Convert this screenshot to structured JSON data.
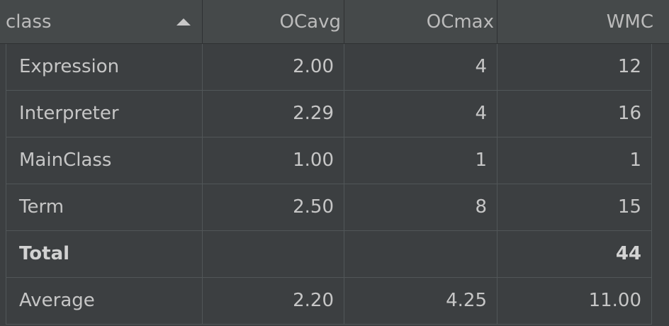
{
  "table": {
    "columns": [
      "class",
      "OCavg",
      "OCmax",
      "WMC"
    ],
    "sorted_column": "class",
    "sort_direction": "ascending",
    "rows": [
      {
        "class": "Expression",
        "ocavg": "2.00",
        "ocmax": "4",
        "wmc": "12"
      },
      {
        "class": "Interpreter",
        "ocavg": "2.29",
        "ocmax": "4",
        "wmc": "16"
      },
      {
        "class": "MainClass",
        "ocavg": "1.00",
        "ocmax": "1",
        "wmc": "1"
      },
      {
        "class": "Term",
        "ocavg": "2.50",
        "ocmax": "8",
        "wmc": "15"
      },
      {
        "class": "Total",
        "ocavg": "",
        "ocmax": "",
        "wmc": "44"
      },
      {
        "class": "Average",
        "ocavg": "2.20",
        "ocmax": "4.25",
        "wmc": "11.00"
      }
    ]
  },
  "colors": {
    "background": "#3c3f41",
    "header_background": "#45494a",
    "text": "#c6c6c6",
    "grid_line": "#515658"
  },
  "icons": {
    "sort": "sort-ascending-icon"
  }
}
